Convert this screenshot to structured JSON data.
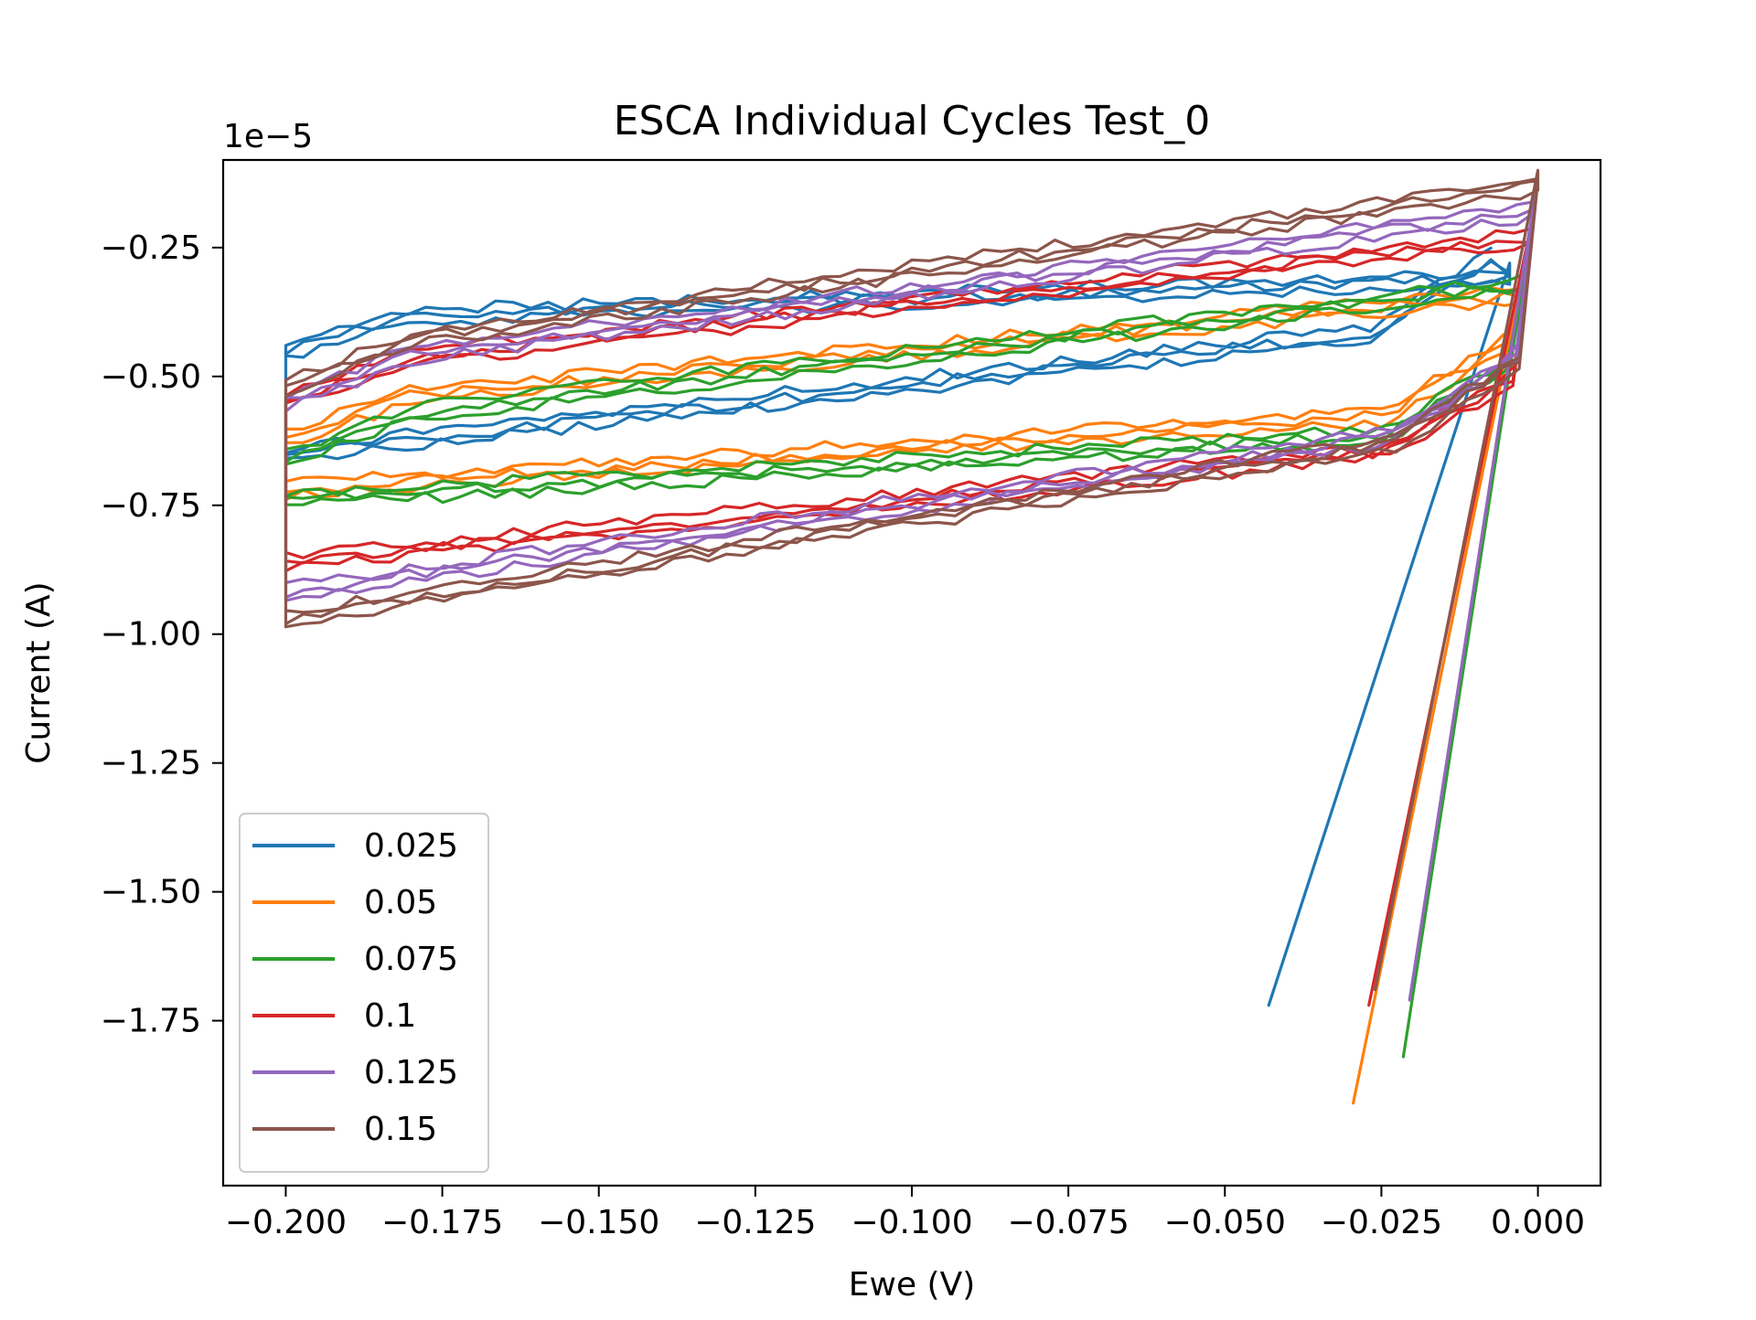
{
  "chart_data": {
    "type": "line",
    "title": "ESCA Individual Cycles Test_0",
    "xlabel": "Ewe (V)",
    "ylabel": "Current (A)",
    "y_offset_text": "1e−5",
    "xlim": [
      -0.21,
      0.01
    ],
    "ylim": [
      -2.07,
      -0.08
    ],
    "xticks": [
      -0.2,
      -0.175,
      -0.15,
      -0.125,
      -0.1,
      -0.075,
      -0.05,
      -0.025,
      0.0
    ],
    "xtick_labels": [
      "−0.200",
      "−0.175",
      "−0.150",
      "−0.125",
      "−0.100",
      "−0.075",
      "−0.050",
      "−0.025",
      "0.000"
    ],
    "yticks": [
      -0.25,
      -0.5,
      -0.75,
      -1.0,
      -1.25,
      -1.5,
      -1.75
    ],
    "ytick_labels": [
      "−0.25",
      "−0.50",
      "−0.75",
      "−1.00",
      "−1.25",
      "−1.50",
      "−1.75"
    ],
    "grid": false,
    "legend_position": "lower-left",
    "series": [
      {
        "name": "0.025",
        "color": "#1f77b4",
        "start": [
          -0.043,
          -1.72
        ],
        "vertex_high": -0.0045,
        "vertex_low": -0.2,
        "anodic_start": -0.31,
        "anodic_end": -0.39,
        "cathodic_start": -0.39,
        "cathodic_end": -0.65
      },
      {
        "name": "0.05",
        "color": "#ff7f0e",
        "start": [
          -0.0295,
          -1.91
        ],
        "vertex_high": -0.0025,
        "vertex_low": -0.2,
        "anodic_start": -0.34,
        "anodic_end": -0.56,
        "cathodic_start": -0.56,
        "cathodic_end": -0.72
      },
      {
        "name": "0.075",
        "color": "#2ca02c",
        "start": [
          -0.0215,
          -1.82
        ],
        "vertex_high": -0.002,
        "vertex_low": -0.2,
        "anodic_start": -0.32,
        "anodic_end": -0.6,
        "cathodic_start": -0.6,
        "cathodic_end": -0.74
      },
      {
        "name": "0.1",
        "color": "#d62728",
        "start": [
          -0.027,
          -1.72
        ],
        "vertex_high": -0.001,
        "vertex_low": -0.2,
        "anodic_start": -0.23,
        "anodic_end": -0.49,
        "cathodic_start": -0.62,
        "cathodic_end": -0.86
      },
      {
        "name": "0.125",
        "color": "#9467bd",
        "start": [
          -0.0205,
          -1.71
        ],
        "vertex_high": -0.0005,
        "vertex_low": -0.2,
        "anodic_start": -0.18,
        "anodic_end": -0.49,
        "cathodic_start": -0.58,
        "cathodic_end": -0.92
      },
      {
        "name": "0.15",
        "color": "#8c564b",
        "start": [
          -0.026,
          -1.69
        ],
        "vertex_high": 0.0,
        "vertex_low": -0.2,
        "anodic_start": -0.13,
        "anodic_end": -0.46,
        "cathodic_start": -0.59,
        "cathodic_end": -0.97
      }
    ]
  }
}
